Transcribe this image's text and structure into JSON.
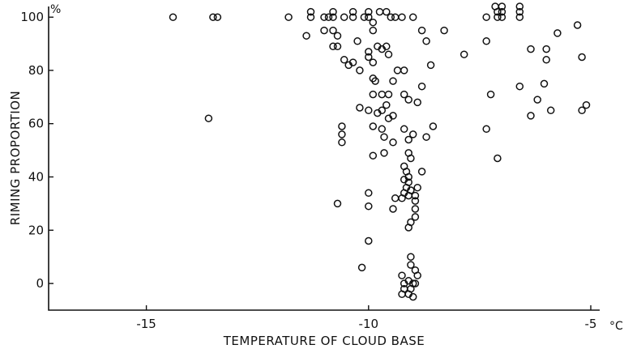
{
  "chart_data": {
    "type": "scatter",
    "title": "",
    "xlabel": "TEMPERATURE OF CLOUD BASE",
    "ylabel": "RIMING PROPORTION",
    "x_unit": "°C",
    "y_unit": "%",
    "xlim": [
      -17.2,
      -4.8
    ],
    "ylim": [
      -10,
      104
    ],
    "x_ticks": [
      {
        "value": -15,
        "label": "-15"
      },
      {
        "value": -10,
        "label": "-10"
      },
      {
        "value": -5,
        "label": "-5"
      }
    ],
    "y_ticks": [
      {
        "value": 0,
        "label": "0"
      },
      {
        "value": 20,
        "label": "20"
      },
      {
        "value": 40,
        "label": "40"
      },
      {
        "value": 60,
        "label": "60"
      },
      {
        "value": 80,
        "label": "80"
      },
      {
        "value": 100,
        "label": "100"
      }
    ],
    "grid": false,
    "legend": "none",
    "points": [
      {
        "x": -14.4,
        "y": 100
      },
      {
        "x": -13.5,
        "y": 100
      },
      {
        "x": -13.4,
        "y": 100
      },
      {
        "x": -13.6,
        "y": 62
      },
      {
        "x": -11.8,
        "y": 100
      },
      {
        "x": -11.3,
        "y": 102
      },
      {
        "x": -11.3,
        "y": 100
      },
      {
        "x": -11.4,
        "y": 93
      },
      {
        "x": -11.0,
        "y": 100
      },
      {
        "x": -10.9,
        "y": 100
      },
      {
        "x": -10.8,
        "y": 102
      },
      {
        "x": -10.8,
        "y": 100
      },
      {
        "x": -11.0,
        "y": 95
      },
      {
        "x": -10.8,
        "y": 95
      },
      {
        "x": -10.7,
        "y": 93
      },
      {
        "x": -10.8,
        "y": 89
      },
      {
        "x": -10.7,
        "y": 89
      },
      {
        "x": -10.55,
        "y": 100
      },
      {
        "x": -10.35,
        "y": 102
      },
      {
        "x": -10.35,
        "y": 100
      },
      {
        "x": -10.1,
        "y": 100
      },
      {
        "x": -10.0,
        "y": 102
      },
      {
        "x": -10.0,
        "y": 100
      },
      {
        "x": -9.75,
        "y": 102
      },
      {
        "x": -9.6,
        "y": 102
      },
      {
        "x": -9.5,
        "y": 100
      },
      {
        "x": -9.4,
        "y": 100
      },
      {
        "x": -9.25,
        "y": 100
      },
      {
        "x": -9.0,
        "y": 100
      },
      {
        "x": -9.9,
        "y": 98
      },
      {
        "x": -9.9,
        "y": 95
      },
      {
        "x": -10.25,
        "y": 91
      },
      {
        "x": -9.8,
        "y": 89
      },
      {
        "x": -9.7,
        "y": 88
      },
      {
        "x": -9.6,
        "y": 89
      },
      {
        "x": -9.55,
        "y": 86
      },
      {
        "x": -10.0,
        "y": 87
      },
      {
        "x": -10.0,
        "y": 85
      },
      {
        "x": -10.55,
        "y": 84
      },
      {
        "x": -10.45,
        "y": 82
      },
      {
        "x": -10.35,
        "y": 83
      },
      {
        "x": -9.9,
        "y": 83
      },
      {
        "x": -10.2,
        "y": 80
      },
      {
        "x": -9.9,
        "y": 77
      },
      {
        "x": -9.85,
        "y": 76
      },
      {
        "x": -9.35,
        "y": 80
      },
      {
        "x": -9.2,
        "y": 80
      },
      {
        "x": -9.45,
        "y": 76
      },
      {
        "x": -9.9,
        "y": 71
      },
      {
        "x": -9.7,
        "y": 71
      },
      {
        "x": -9.55,
        "y": 71
      },
      {
        "x": -9.2,
        "y": 71
      },
      {
        "x": -9.1,
        "y": 69
      },
      {
        "x": -9.6,
        "y": 67
      },
      {
        "x": -9.7,
        "y": 65
      },
      {
        "x": -9.8,
        "y": 64
      },
      {
        "x": -10.0,
        "y": 65
      },
      {
        "x": -10.2,
        "y": 66
      },
      {
        "x": -9.55,
        "y": 62
      },
      {
        "x": -9.45,
        "y": 63
      },
      {
        "x": -9.9,
        "y": 59
      },
      {
        "x": -9.7,
        "y": 58
      },
      {
        "x": -9.65,
        "y": 55
      },
      {
        "x": -10.6,
        "y": 59
      },
      {
        "x": -10.6,
        "y": 56
      },
      {
        "x": -10.6,
        "y": 53
      },
      {
        "x": -9.45,
        "y": 53
      },
      {
        "x": -9.2,
        "y": 58
      },
      {
        "x": -9.0,
        "y": 56
      },
      {
        "x": -9.1,
        "y": 54
      },
      {
        "x": -9.65,
        "y": 49
      },
      {
        "x": -9.9,
        "y": 48
      },
      {
        "x": -9.1,
        "y": 49
      },
      {
        "x": -9.05,
        "y": 47
      },
      {
        "x": -9.2,
        "y": 44
      },
      {
        "x": -9.15,
        "y": 42
      },
      {
        "x": -9.1,
        "y": 40
      },
      {
        "x": -9.2,
        "y": 39
      },
      {
        "x": -9.1,
        "y": 38
      },
      {
        "x": -9.15,
        "y": 36
      },
      {
        "x": -9.05,
        "y": 35
      },
      {
        "x": -9.2,
        "y": 34
      },
      {
        "x": -9.1,
        "y": 33
      },
      {
        "x": -9.25,
        "y": 32
      },
      {
        "x": -9.4,
        "y": 32
      },
      {
        "x": -8.95,
        "y": 33
      },
      {
        "x": -8.9,
        "y": 36
      },
      {
        "x": -8.95,
        "y": 31
      },
      {
        "x": -8.95,
        "y": 28
      },
      {
        "x": -8.95,
        "y": 25
      },
      {
        "x": -9.45,
        "y": 28
      },
      {
        "x": -9.05,
        "y": 23
      },
      {
        "x": -9.1,
        "y": 21
      },
      {
        "x": -10.0,
        "y": 34
      },
      {
        "x": -10.0,
        "y": 29
      },
      {
        "x": -10.7,
        "y": 30
      },
      {
        "x": -10.0,
        "y": 16
      },
      {
        "x": -10.15,
        "y": 6
      },
      {
        "x": -9.05,
        "y": 10
      },
      {
        "x": -9.05,
        "y": 7
      },
      {
        "x": -8.95,
        "y": 5
      },
      {
        "x": -8.9,
        "y": 3
      },
      {
        "x": -9.25,
        "y": 3
      },
      {
        "x": -9.1,
        "y": 1
      },
      {
        "x": -9.2,
        "y": 0
      },
      {
        "x": -9.0,
        "y": 0
      },
      {
        "x": -8.95,
        "y": 0
      },
      {
        "x": -9.2,
        "y": -2
      },
      {
        "x": -9.05,
        "y": -2
      },
      {
        "x": -9.1,
        "y": -4
      },
      {
        "x": -9.25,
        "y": -4
      },
      {
        "x": -9.0,
        "y": -5
      },
      {
        "x": -8.8,
        "y": 95
      },
      {
        "x": -8.7,
        "y": 91
      },
      {
        "x": -8.3,
        "y": 95
      },
      {
        "x": -8.6,
        "y": 82
      },
      {
        "x": -8.8,
        "y": 74
      },
      {
        "x": -8.9,
        "y": 68
      },
      {
        "x": -8.55,
        "y": 59
      },
      {
        "x": -8.7,
        "y": 55
      },
      {
        "x": -8.8,
        "y": 42
      },
      {
        "x": -7.85,
        "y": 86
      },
      {
        "x": -7.35,
        "y": 100
      },
      {
        "x": -7.35,
        "y": 91
      },
      {
        "x": -7.35,
        "y": 58
      },
      {
        "x": -7.25,
        "y": 71
      },
      {
        "x": -7.1,
        "y": 47
      },
      {
        "x": -7.15,
        "y": 104
      },
      {
        "x": -7.1,
        "y": 102
      },
      {
        "x": -7.1,
        "y": 100
      },
      {
        "x": -7.0,
        "y": 104
      },
      {
        "x": -7.0,
        "y": 102
      },
      {
        "x": -7.0,
        "y": 100
      },
      {
        "x": -6.6,
        "y": 104
      },
      {
        "x": -6.6,
        "y": 102
      },
      {
        "x": -6.6,
        "y": 100
      },
      {
        "x": -6.35,
        "y": 88
      },
      {
        "x": -6.6,
        "y": 74
      },
      {
        "x": -6.35,
        "y": 63
      },
      {
        "x": -6.2,
        "y": 69
      },
      {
        "x": -6.05,
        "y": 75
      },
      {
        "x": -6.0,
        "y": 88
      },
      {
        "x": -6.0,
        "y": 84
      },
      {
        "x": -5.9,
        "y": 65
      },
      {
        "x": -5.75,
        "y": 94
      },
      {
        "x": -5.3,
        "y": 97
      },
      {
        "x": -5.2,
        "y": 85
      },
      {
        "x": -5.2,
        "y": 65
      },
      {
        "x": -5.1,
        "y": 67
      }
    ]
  }
}
